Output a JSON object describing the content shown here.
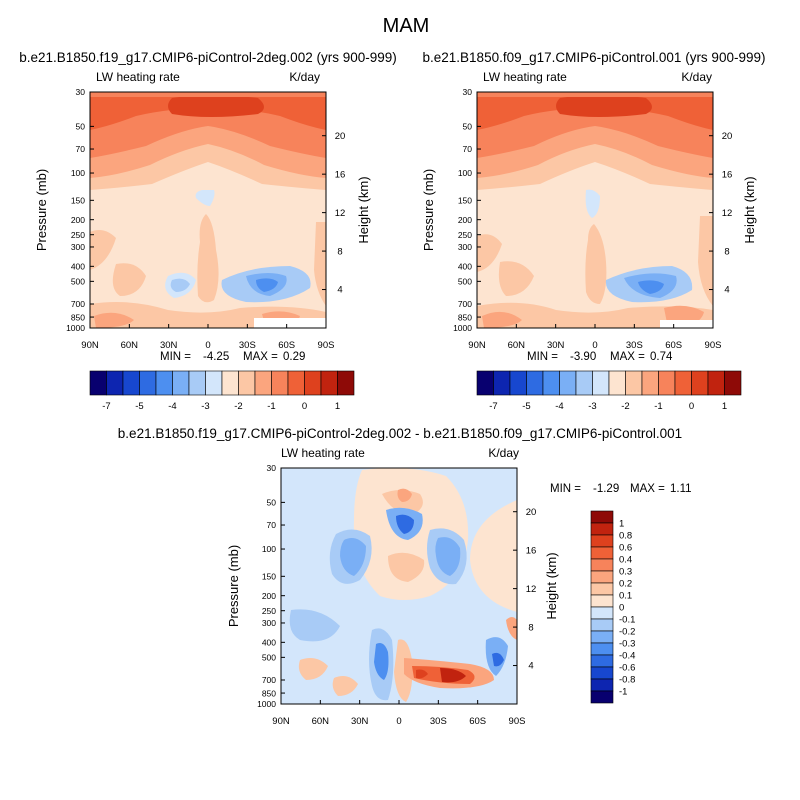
{
  "figure_title": "MAM",
  "chart_data": [
    {
      "type": "heatmap",
      "title": "b.e21.B1850.f19_g17.CMIP6-piControl-2deg.002 (yrs 900-999)",
      "left_label": "LW heating rate",
      "right_label": "K/day",
      "xlabel": "",
      "ylabel": "Pressure (mb)",
      "y2label": "Height (km)",
      "x_ticks": [
        "90N",
        "60N",
        "30N",
        "0",
        "30S",
        "60S",
        "90S"
      ],
      "p_ticks": [
        "30",
        "50",
        "70",
        "100",
        "150",
        "200",
        "250",
        "300",
        "400",
        "500",
        "700",
        "850",
        "1000"
      ],
      "height_ticks": [
        "20",
        "16",
        "12",
        "8",
        "4"
      ],
      "min_label": "MIN = ",
      "min_value": "-4.25",
      "max_label": "MAX = ",
      "max_value": "0.29",
      "levels": [
        -7.5,
        -7,
        -6.5,
        -6,
        -5.5,
        -5,
        -4.5,
        -4,
        -3.5,
        -3,
        -2.5,
        -2,
        -1.5,
        -1,
        -0.5,
        0,
        0.5,
        1,
        1.5
      ],
      "colorbar_labels": [
        "-7",
        "-5",
        "-4",
        "-3",
        "-2",
        "-1",
        "0",
        "1"
      ]
    },
    {
      "type": "heatmap",
      "title": "b.e21.B1850.f09_g17.CMIP6-piControl.001 (yrs 900-999)",
      "left_label": "LW heating rate",
      "right_label": "K/day",
      "xlabel": "",
      "ylabel": "Pressure (mb)",
      "y2label": "Height (km)",
      "x_ticks": [
        "90N",
        "60N",
        "30N",
        "0",
        "30S",
        "60S",
        "90S"
      ],
      "p_ticks": [
        "30",
        "50",
        "70",
        "100",
        "150",
        "200",
        "250",
        "300",
        "400",
        "500",
        "700",
        "850",
        "1000"
      ],
      "height_ticks": [
        "20",
        "16",
        "12",
        "8",
        "4"
      ],
      "min_label": "MIN = ",
      "min_value": "-3.90",
      "max_label": "MAX = ",
      "max_value": "0.74",
      "levels": [
        -7.5,
        -7,
        -6.5,
        -6,
        -5.5,
        -5,
        -4.5,
        -4,
        -3.5,
        -3,
        -2.5,
        -2,
        -1.5,
        -1,
        -0.5,
        0,
        0.5,
        1,
        1.5
      ],
      "colorbar_labels": [
        "-7",
        "-5",
        "-4",
        "-3",
        "-2",
        "-1",
        "0",
        "1"
      ]
    },
    {
      "type": "heatmap",
      "title": "b.e21.B1850.f19_g17.CMIP6-piControl-2deg.002 - b.e21.B1850.f09_g17.CMIP6-piControl.001",
      "left_label": "LW heating rate",
      "right_label": "K/day",
      "xlabel": "",
      "ylabel": "Pressure (mb)",
      "y2label": "Height (km)",
      "x_ticks": [
        "90N",
        "60N",
        "30N",
        "0",
        "30S",
        "60S",
        "90S"
      ],
      "p_ticks": [
        "30",
        "50",
        "70",
        "100",
        "150",
        "200",
        "250",
        "300",
        "400",
        "500",
        "700",
        "850",
        "1000"
      ],
      "height_ticks": [
        "20",
        "16",
        "12",
        "8",
        "4"
      ],
      "min_label": "MIN = ",
      "min_value": "-1.29",
      "max_label": "MAX = ",
      "max_value": "1.11",
      "levels": [
        -1.1,
        -1,
        -0.8,
        -0.6,
        -0.4,
        -0.3,
        -0.2,
        -0.1,
        0,
        0.1,
        0.2,
        0.3,
        0.4,
        0.6,
        0.8,
        1,
        1.1
      ],
      "colorbar_labels": [
        "1",
        "0.8",
        "0.6",
        "0.4",
        "0.3",
        "0.2",
        "0.1",
        "0",
        "-0.1",
        "-0.2",
        "-0.3",
        "-0.4",
        "-0.6",
        "-0.8",
        "-1"
      ]
    }
  ],
  "colors": {
    "colorbar_main": [
      "#08006f",
      "#0d25b0",
      "#1747cf",
      "#2e6be2",
      "#4d8ff0",
      "#7aaff5",
      "#a8cbf6",
      "#d3e6fb",
      "#fde4d0",
      "#fcc7a5",
      "#fba57e",
      "#f7835b",
      "#ef6137",
      "#de411e",
      "#c1230f",
      "#8e0a07"
    ],
    "colorbar_diff": [
      "#8e0a07",
      "#c1230f",
      "#de411e",
      "#ef6137",
      "#f7835b",
      "#fba57e",
      "#fcc7a5",
      "#fde4d0",
      "#d3e6fb",
      "#a8cbf6",
      "#7aaff5",
      "#4d8ff0",
      "#2e6be2",
      "#1747cf",
      "#0d25b0",
      "#08006f"
    ]
  }
}
